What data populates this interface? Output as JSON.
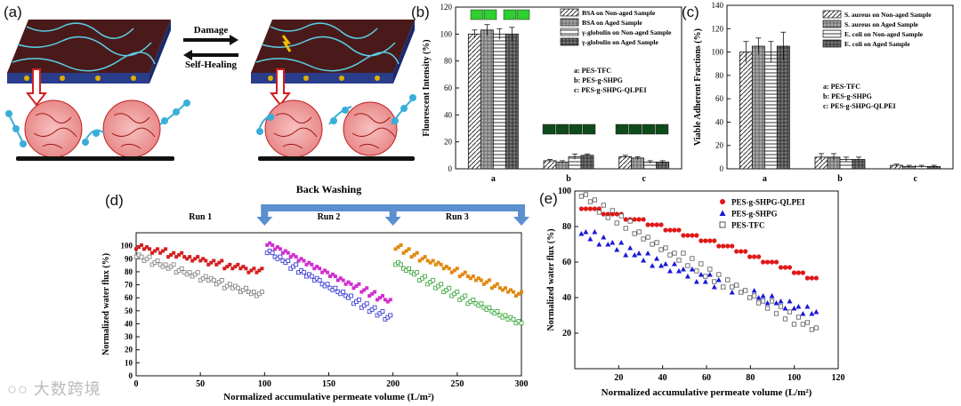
{
  "panel_labels": {
    "a": "(a)",
    "b": "(b)",
    "c": "(c)",
    "d": "(d)",
    "e": "(e)"
  },
  "schematic": {
    "damage": "Damage",
    "self_healing": "Self-Healing"
  },
  "watermark": "大数跨境",
  "chart_data": [
    {
      "id": "b",
      "type": "bar",
      "title": "",
      "ylabel": "Fluorescent Intensity (%)",
      "xlabel": "",
      "ylim": [
        0,
        120
      ],
      "yticks": [
        0,
        20,
        40,
        60,
        80,
        100,
        120
      ],
      "categories": [
        "a",
        "b",
        "c"
      ],
      "series": [
        {
          "name": "BSA on Non-aged Sample",
          "values": [
            100,
            6,
            9
          ]
        },
        {
          "name": "BSA on Aged Sample",
          "values": [
            103,
            5,
            8
          ]
        },
        {
          "name": "γ-globulin on Non-aged Sample",
          "values": [
            100,
            9,
            5
          ]
        },
        {
          "name": "γ-globulin on Aged Sample",
          "values": [
            100,
            10,
            5
          ]
        }
      ],
      "errors": [
        [
          3,
          1,
          1
        ],
        [
          4,
          1,
          1
        ],
        [
          4,
          2,
          1
        ],
        [
          5,
          1,
          1
        ]
      ],
      "notes": [
        "a: PES-TFC",
        "b: PES-g-SHPG",
        "c: PES-g-SHPG-QLPEI"
      ]
    },
    {
      "id": "c",
      "type": "bar",
      "ylabel": "Viable Adherent Fractions (%)",
      "xlabel": "",
      "ylim": [
        0,
        140
      ],
      "yticks": [
        0,
        20,
        40,
        60,
        80,
        100,
        120,
        140
      ],
      "categories": [
        "a",
        "b",
        "c"
      ],
      "series": [
        {
          "name": "S. aureus on Non-aged Sample",
          "values": [
            100,
            10,
            3
          ]
        },
        {
          "name": "S. aureus on Aged Sample",
          "values": [
            105,
            10,
            2
          ]
        },
        {
          "name": "E. coli on Non-aged Sample",
          "values": [
            100,
            8,
            2
          ]
        },
        {
          "name": "E. coli on Aged Sample",
          "values": [
            105,
            8,
            2
          ]
        }
      ],
      "errors": [
        [
          9,
          3,
          1
        ],
        [
          7,
          3,
          1
        ],
        [
          9,
          2,
          1
        ],
        [
          12,
          2,
          1
        ]
      ],
      "notes": [
        "a: PES-TFC",
        "b: PES-g-SHPG",
        "c: PES-g-SHPG-QLPEI"
      ]
    },
    {
      "id": "d",
      "type": "scatter",
      "xlabel": "Normalized accumulative permeate volume (L/m²)",
      "ylabel": "Normalized water flux (%)",
      "xlim": [
        0,
        300
      ],
      "ylim": [
        0,
        110
      ],
      "xticks": [
        0,
        50,
        100,
        150,
        200,
        250,
        300
      ],
      "yticks": [
        0,
        10,
        20,
        30,
        40,
        50,
        60,
        70,
        80,
        90,
        100
      ],
      "top_annotation": "Back Washing",
      "runs": [
        "Run 1",
        "Run 2",
        "Run 3"
      ],
      "series": [
        {
          "name": "PES-g-SHPG-QLPEI run 1",
          "color": "#d32020",
          "marker": "square-filled",
          "x0": 0,
          "x1": 98,
          "y0": 100,
          "y1": 80
        },
        {
          "name": "PES-g-SHPG run 1",
          "color": "#7a7a7a",
          "marker": "square-open",
          "x0": 0,
          "x1": 98,
          "y0": 93,
          "y1": 62
        },
        {
          "name": "PES-g-SHPG-QLPEI run 2",
          "color": "#d030d0",
          "marker": "square-filled",
          "x0": 102,
          "x1": 198,
          "y0": 103,
          "y1": 57
        },
        {
          "name": "PES-g-SHPG run 2",
          "color": "#2a2ad0",
          "marker": "square-open",
          "x0": 102,
          "x1": 198,
          "y0": 97,
          "y1": 44
        },
        {
          "name": "PES-g-SHPG-QLPEI run 3",
          "color": "#e08a10",
          "marker": "square-filled",
          "x0": 202,
          "x1": 300,
          "y0": 100,
          "y1": 62
        },
        {
          "name": "PES-g-SHPG run 3",
          "color": "#30a030",
          "marker": "square-open",
          "x0": 202,
          "x1": 300,
          "y0": 87,
          "y1": 40
        }
      ]
    },
    {
      "id": "e",
      "type": "scatter",
      "xlabel": "Normalized accumulative permeate volume (L/m²)",
      "ylabel": "Normalized water flux (%)",
      "xlim": [
        0,
        120
      ],
      "ylim": [
        0,
        100
      ],
      "xticks": [
        20,
        40,
        60,
        80,
        100,
        120
      ],
      "yticks": [
        20,
        40,
        60,
        80,
        100
      ],
      "series": [
        {
          "name": "PES-g-SHPG-QLPEI",
          "color": "#e01818",
          "marker": "circle",
          "x0": 3,
          "x1": 110,
          "y0": 90,
          "y1": 50
        },
        {
          "name": "PES-g-SHPG",
          "color": "#1818d8",
          "marker": "triangle",
          "x0": 3,
          "x1": 110,
          "y0": 78,
          "y1": 31
        },
        {
          "name": "PES-TFC",
          "color": "#555555",
          "marker": "square-open",
          "x0": 3,
          "x1": 110,
          "y0": 100,
          "y1": 22
        }
      ]
    }
  ]
}
